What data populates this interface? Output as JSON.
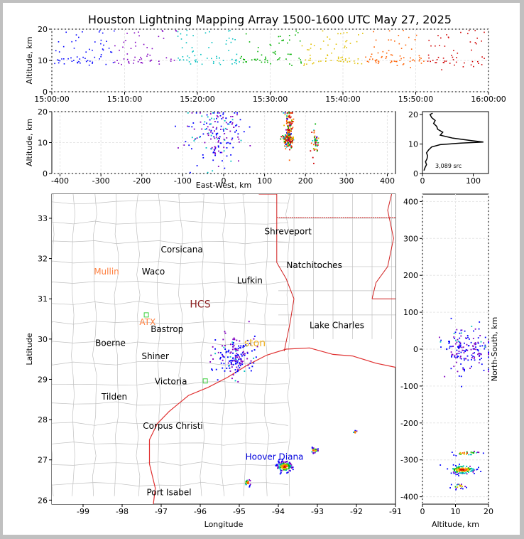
{
  "title": "Houston Lightning Mapping Array 1500-1600 UTC May 27, 2025",
  "colors": {
    "coast": "#e03030",
    "state_border": "#d02020",
    "county": "#c0c0c0",
    "grid": "#e6e6e6",
    "source_scale": [
      "#0000ff",
      "#8000c0",
      "#00c0c0",
      "#00b000",
      "#e0c000",
      "#ff6000",
      "#d00000"
    ]
  },
  "chart_data": [
    {
      "type": "scatter",
      "panel": "time-altitude",
      "xlabel": "",
      "ylabel": "Altitude, km",
      "xlim": [
        "15:00:00",
        "16:00:00"
      ],
      "ylim": [
        0,
        20
      ],
      "x_ticks": [
        "15:00:00",
        "15:10:00",
        "15:20:00",
        "15:30:00",
        "15:40:00",
        "15:50:00",
        "16:00:00"
      ],
      "y_ticks": [
        0,
        10,
        20
      ],
      "grid": true
    },
    {
      "type": "scatter",
      "panel": "east-west-altitude",
      "xlabel": "East-West, km",
      "ylabel": "Altitude, km",
      "xlim": [
        -420,
        420
      ],
      "ylim": [
        0,
        20
      ],
      "x_ticks": [
        -400,
        -300,
        -200,
        -100,
        0,
        100,
        200,
        300,
        400
      ],
      "y_ticks": [
        0,
        10,
        20
      ],
      "clusters": [
        {
          "x": -20,
          "y": 13,
          "sx": 35,
          "sy": 5,
          "n": 170
        },
        {
          "x": 155,
          "y": 11,
          "sx": 6,
          "sy": 1,
          "n": 130
        },
        {
          "x": 158,
          "y": 15,
          "sx": 5,
          "sy": 3.5,
          "n": 120
        },
        {
          "x": 222,
          "y": 11,
          "sx": 4,
          "sy": 2,
          "n": 40
        }
      ],
      "grid": true
    },
    {
      "type": "line",
      "panel": "altitude-histogram",
      "xlim": [
        0,
        130
      ],
      "ylim": [
        0,
        21
      ],
      "x_ticks": [
        0,
        100
      ],
      "y_ticks": [
        0,
        10,
        20
      ],
      "annotation": "3,089 src",
      "x": [
        3,
        5,
        8,
        6,
        9,
        10,
        8,
        12,
        18,
        35,
        75,
        120,
        95,
        60,
        35,
        40,
        30,
        28,
        22,
        25,
        18,
        15,
        20
      ],
      "y": [
        1,
        2,
        3,
        4,
        5,
        6,
        7,
        8,
        9,
        9.8,
        10.3,
        10.7,
        11.2,
        12,
        13,
        14,
        15,
        16,
        17,
        18,
        19,
        20,
        20.5
      ]
    },
    {
      "type": "scatter",
      "panel": "plan-view-map",
      "xlabel": "Longitude",
      "ylabel": "Latitude",
      "xlim": [
        -99.8,
        -91
      ],
      "ylim": [
        25.9,
        33.6
      ],
      "x_ticks": [
        -99,
        -98,
        -97,
        -96,
        -95,
        -94,
        -93,
        -92,
        -91
      ],
      "y_ticks": [
        26,
        27,
        28,
        29,
        30,
        31,
        32,
        33
      ],
      "cities": [
        {
          "name": "Shreveport",
          "lon": -93.75,
          "lat": 32.6,
          "color": "#000000"
        },
        {
          "name": "Corsicana",
          "lon": -96.47,
          "lat": 32.15,
          "color": "#000000"
        },
        {
          "name": "Natchitoches",
          "lon": -93.08,
          "lat": 31.76,
          "color": "#000000"
        },
        {
          "name": "Mullin",
          "lon": -98.4,
          "lat": 31.6,
          "color": "#ff8040"
        },
        {
          "name": "Waco",
          "lon": -97.2,
          "lat": 31.6,
          "color": "#000000"
        },
        {
          "name": "Lufkin",
          "lon": -94.73,
          "lat": 31.38,
          "color": "#000000"
        },
        {
          "name": "HCS",
          "lon": -96.0,
          "lat": 30.78,
          "color": "#8b2020"
        },
        {
          "name": "ATX",
          "lon": -97.35,
          "lat": 30.35,
          "color": "#ff8040"
        },
        {
          "name": "Bastrop",
          "lon": -96.85,
          "lat": 30.17,
          "color": "#000000"
        },
        {
          "name": "Lake Charles",
          "lon": -92.5,
          "lat": 30.27,
          "color": "#000000"
        },
        {
          "name": "ston",
          "lon": -94.6,
          "lat": 29.82,
          "color": "#f0b020"
        },
        {
          "name": "Boerne",
          "lon": -98.3,
          "lat": 29.83,
          "color": "#000000"
        },
        {
          "name": "Shiner",
          "lon": -97.15,
          "lat": 29.5,
          "color": "#000000"
        },
        {
          "name": "Victoria",
          "lon": -96.75,
          "lat": 28.88,
          "color": "#000000"
        },
        {
          "name": "Tilden",
          "lon": -98.2,
          "lat": 28.5,
          "color": "#000000"
        },
        {
          "name": "Corpus Christi",
          "lon": -96.7,
          "lat": 27.77,
          "color": "#000000"
        },
        {
          "name": "Hoover Diana",
          "lon": -94.1,
          "lat": 27.0,
          "color": "#0000dd"
        },
        {
          "name": "Port Isabel",
          "lon": -96.8,
          "lat": 26.12,
          "color": "#000000"
        }
      ],
      "stations": [
        {
          "lon": -97.38,
          "lat": 30.6
        },
        {
          "lon": -95.87,
          "lat": 28.96
        }
      ],
      "clusters": [
        {
          "lon": -95.1,
          "lat": 29.6,
          "slon": 0.25,
          "slat": 0.25,
          "n": 160
        },
        {
          "lon": -93.85,
          "lat": 26.85,
          "slon": 0.1,
          "slat": 0.06,
          "n": 150
        },
        {
          "lon": -93.1,
          "lat": 27.25,
          "slon": 0.05,
          "slat": 0.03,
          "n": 25
        },
        {
          "lon": -94.8,
          "lat": 26.45,
          "slon": 0.04,
          "slat": 0.04,
          "n": 20
        },
        {
          "lon": -92.05,
          "lat": 27.7,
          "slon": 0.03,
          "slat": 0.02,
          "n": 8
        }
      ]
    },
    {
      "type": "scatter",
      "panel": "altitude-north-south",
      "xlabel": "Altitude, km",
      "ylabel": "North-South, km",
      "xlim": [
        0,
        20
      ],
      "ylim": [
        -420,
        420
      ],
      "x_ticks": [
        0,
        10,
        20
      ],
      "y_ticks": [
        -400,
        -300,
        -200,
        -100,
        0,
        100,
        200,
        300,
        400
      ],
      "clusters": [
        {
          "x": 13,
          "y": 0,
          "sx": 4,
          "sy": 30,
          "n": 170
        },
        {
          "x": 12,
          "y": -325,
          "sx": 2,
          "sy": 6,
          "n": 140
        },
        {
          "x": 13,
          "y": -280,
          "sx": 2,
          "sy": 3,
          "n": 30
        },
        {
          "x": 11,
          "y": -370,
          "sx": 1,
          "sy": 3,
          "n": 20
        }
      ],
      "grid": true
    }
  ]
}
